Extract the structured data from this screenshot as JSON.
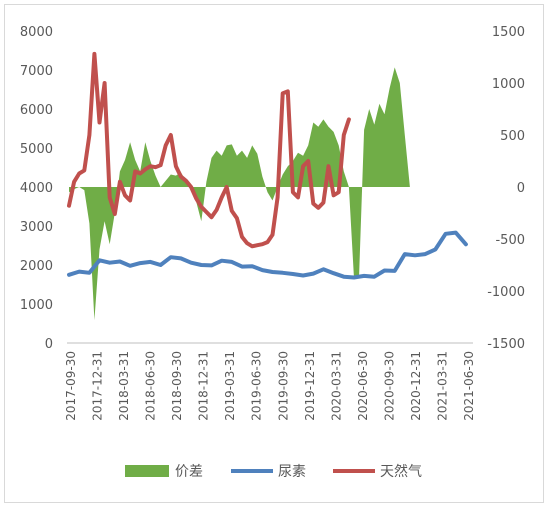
{
  "chart_data": {
    "type": "area+line",
    "title": "",
    "y_left": {
      "min": 0,
      "max": 8000,
      "ticks": [
        0,
        1000,
        2000,
        3000,
        4000,
        5000,
        6000,
        7000,
        8000
      ]
    },
    "y_right": {
      "min": -1500,
      "max": 1500,
      "ticks": [
        -1500,
        -1000,
        -500,
        0,
        500,
        1000,
        1500
      ]
    },
    "x_labels": [
      "2017-09-30",
      "2017-12-31",
      "2018-03-31",
      "2018-06-30",
      "2018-09-30",
      "2018-12-31",
      "2019-03-31",
      "2019-06-30",
      "2019-09-30",
      "2019-12-31",
      "2020-03-31",
      "2020-06-30",
      "2020-09-30",
      "2020-12-31",
      "2021-03-31",
      "2021-06-30"
    ],
    "legend": [
      "价差",
      "尿素",
      "天然气"
    ],
    "colors": {
      "spread": "#70ad47",
      "urea": "#4f81bd",
      "gas": "#c0504d"
    },
    "series": [
      {
        "name": "价差",
        "type": "area",
        "axis": "right",
        "points": [
          [
            0,
            -50
          ],
          [
            1,
            -20
          ],
          [
            2,
            0
          ],
          [
            3,
            -30
          ],
          [
            4,
            -350
          ],
          [
            5,
            -1280
          ],
          [
            6,
            -600
          ],
          [
            7,
            -330
          ],
          [
            8,
            -550
          ],
          [
            9,
            -250
          ],
          [
            10,
            150
          ],
          [
            11,
            260
          ],
          [
            12,
            430
          ],
          [
            13,
            260
          ],
          [
            14,
            150
          ],
          [
            15,
            430
          ],
          [
            16,
            250
          ],
          [
            17,
            110
          ],
          [
            18,
            0
          ],
          [
            19,
            60
          ],
          [
            20,
            120
          ],
          [
            21,
            110
          ],
          [
            22,
            140
          ],
          [
            23,
            60
          ],
          [
            24,
            0
          ],
          [
            25,
            -140
          ],
          [
            26,
            -330
          ],
          [
            27,
            50
          ],
          [
            28,
            280
          ],
          [
            29,
            350
          ],
          [
            30,
            300
          ],
          [
            31,
            400
          ],
          [
            32,
            410
          ],
          [
            33,
            300
          ],
          [
            34,
            350
          ],
          [
            35,
            280
          ],
          [
            36,
            400
          ],
          [
            37,
            320
          ],
          [
            38,
            100
          ],
          [
            39,
            -50
          ],
          [
            40,
            -130
          ],
          [
            41,
            0
          ],
          [
            42,
            120
          ],
          [
            43,
            200
          ],
          [
            44,
            250
          ],
          [
            45,
            330
          ],
          [
            46,
            300
          ],
          [
            47,
            400
          ],
          [
            48,
            620
          ],
          [
            49,
            580
          ],
          [
            50,
            650
          ],
          [
            51,
            580
          ],
          [
            52,
            530
          ],
          [
            53,
            400
          ],
          [
            54,
            150
          ],
          [
            55,
            0
          ],
          [
            56,
            -880
          ],
          [
            57,
            -850
          ],
          [
            58,
            550
          ],
          [
            59,
            750
          ],
          [
            60,
            600
          ],
          [
            61,
            800
          ],
          [
            62,
            700
          ],
          [
            63,
            950
          ],
          [
            64,
            1150
          ],
          [
            65,
            1000
          ],
          [
            66,
            500
          ],
          [
            67,
            0
          ]
        ]
      },
      {
        "name": "尿素",
        "type": "line",
        "axis": "left",
        "points": [
          [
            0,
            1750
          ],
          [
            2,
            1830
          ],
          [
            4,
            1800
          ],
          [
            6,
            2120
          ],
          [
            8,
            2060
          ],
          [
            10,
            2090
          ],
          [
            12,
            1980
          ],
          [
            14,
            2050
          ],
          [
            16,
            2080
          ],
          [
            18,
            2000
          ],
          [
            20,
            2200
          ],
          [
            22,
            2170
          ],
          [
            24,
            2060
          ],
          [
            26,
            2000
          ],
          [
            28,
            1990
          ],
          [
            30,
            2110
          ],
          [
            32,
            2080
          ],
          [
            34,
            1960
          ],
          [
            36,
            1970
          ],
          [
            38,
            1870
          ],
          [
            40,
            1820
          ],
          [
            42,
            1800
          ],
          [
            44,
            1770
          ],
          [
            46,
            1730
          ],
          [
            48,
            1780
          ],
          [
            50,
            1890
          ],
          [
            52,
            1790
          ],
          [
            54,
            1700
          ],
          [
            56,
            1680
          ],
          [
            58,
            1720
          ],
          [
            60,
            1700
          ],
          [
            62,
            1860
          ],
          [
            64,
            1850
          ],
          [
            66,
            2280
          ],
          [
            68,
            2250
          ],
          [
            70,
            2280
          ],
          [
            72,
            2400
          ],
          [
            74,
            2800
          ],
          [
            76,
            2830
          ],
          [
            78,
            2530
          ]
        ]
      },
      {
        "name": "天然气",
        "type": "line",
        "axis": "right",
        "points": [
          [
            0,
            -180
          ],
          [
            1,
            50
          ],
          [
            2,
            130
          ],
          [
            3,
            160
          ],
          [
            4,
            500
          ],
          [
            5,
            1280
          ],
          [
            6,
            620
          ],
          [
            7,
            1000
          ],
          [
            8,
            -100
          ],
          [
            9,
            -260
          ],
          [
            10,
            50
          ],
          [
            11,
            -80
          ],
          [
            12,
            -130
          ],
          [
            13,
            150
          ],
          [
            14,
            130
          ],
          [
            15,
            170
          ],
          [
            16,
            200
          ],
          [
            17,
            190
          ],
          [
            18,
            210
          ],
          [
            19,
            400
          ],
          [
            20,
            500
          ],
          [
            21,
            200
          ],
          [
            22,
            100
          ],
          [
            23,
            60
          ],
          [
            24,
            0
          ],
          [
            25,
            -110
          ],
          [
            26,
            -190
          ],
          [
            27,
            -240
          ],
          [
            28,
            -290
          ],
          [
            29,
            -220
          ],
          [
            30,
            -100
          ],
          [
            31,
            0
          ],
          [
            32,
            -230
          ],
          [
            33,
            -300
          ],
          [
            34,
            -480
          ],
          [
            35,
            -540
          ],
          [
            36,
            -570
          ],
          [
            37,
            -560
          ],
          [
            38,
            -550
          ],
          [
            39,
            -530
          ],
          [
            40,
            -460
          ],
          [
            41,
            -100
          ],
          [
            42,
            900
          ],
          [
            43,
            920
          ],
          [
            44,
            -50
          ],
          [
            45,
            -100
          ],
          [
            46,
            200
          ],
          [
            47,
            250
          ],
          [
            48,
            -160
          ],
          [
            49,
            -200
          ],
          [
            50,
            -150
          ],
          [
            51,
            200
          ],
          [
            52,
            -80
          ],
          [
            53,
            -50
          ],
          [
            54,
            500
          ],
          [
            55,
            650
          ]
        ]
      }
    ]
  }
}
